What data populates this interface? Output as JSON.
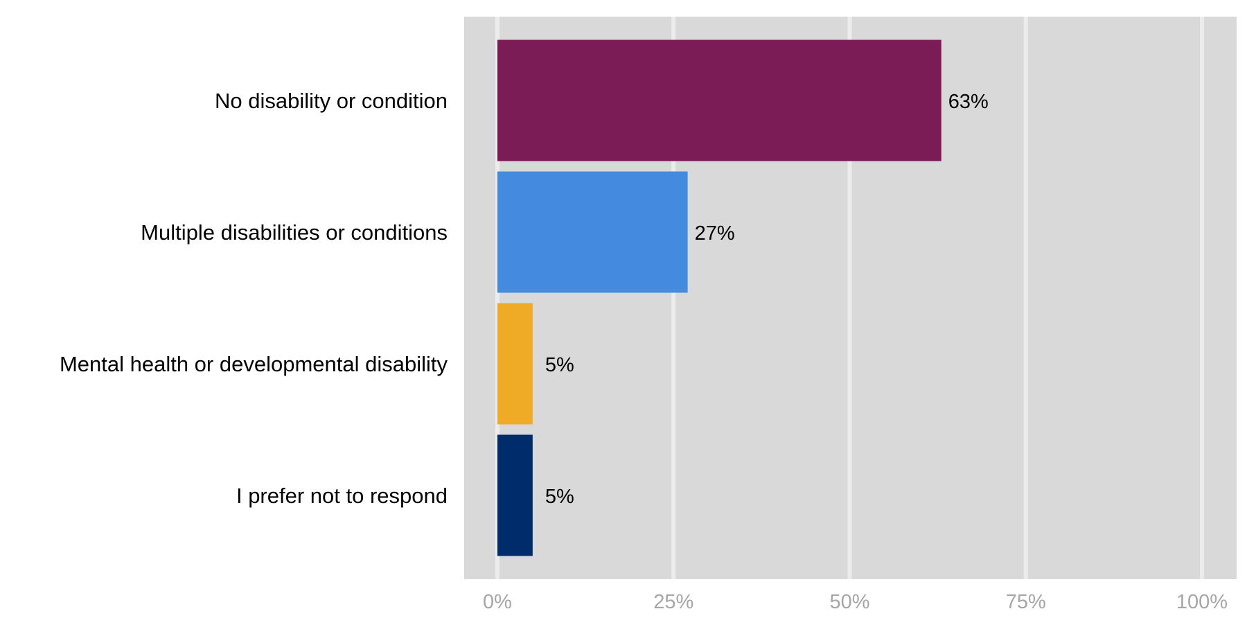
{
  "chart_data": {
    "type": "bar",
    "orientation": "horizontal",
    "categories": [
      "No disability or condition",
      "Multiple disabilities or conditions",
      "Mental health or developmental disability",
      "I prefer not to respond"
    ],
    "values": [
      63,
      27,
      5,
      5
    ],
    "data_labels": [
      "63%",
      "27%",
      "5%",
      "5%"
    ],
    "bar_colors": [
      "#7b1c57",
      "#448adf",
      "#efab26",
      "#002c6c"
    ],
    "xlim": [
      0,
      100
    ],
    "xticks": [
      0,
      25,
      50,
      75,
      100
    ],
    "xtick_labels": [
      "0%",
      "25%",
      "50%",
      "75%",
      "100%"
    ],
    "title": "",
    "xlabel": "",
    "ylabel": "",
    "grid": true,
    "legend": "none",
    "plot_background": "#d9d9d9",
    "grid_color": "#ececec"
  }
}
